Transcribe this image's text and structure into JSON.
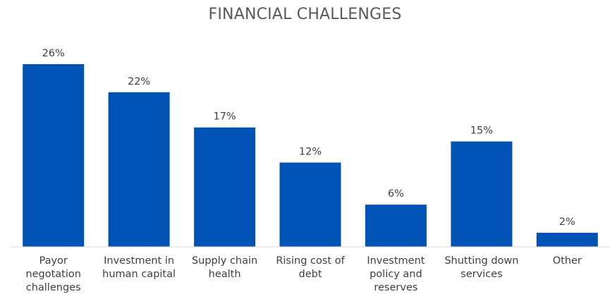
{
  "chart_data": {
    "type": "bar",
    "title": "FINANCIAL CHALLENGES",
    "categories": [
      "Payor negotation challenges",
      "Investment in human capital",
      "Supply chain health",
      "Rising cost of debt",
      "Investment policy and reserves",
      "Shutting down services",
      "Other"
    ],
    "category_lines": [
      [
        "Payor",
        "negotation",
        "challenges"
      ],
      [
        "Investment in",
        "human capital"
      ],
      [
        "Supply chain",
        "health"
      ],
      [
        "Rising cost of",
        "debt"
      ],
      [
        "Investment",
        "policy and",
        "reserves"
      ],
      [
        "Shutting down",
        "services"
      ],
      [
        "Other"
      ]
    ],
    "values": [
      26,
      22,
      17,
      12,
      6,
      15,
      2
    ],
    "data_labels": [
      "26%",
      "22%",
      "17%",
      "12%",
      "6%",
      "15%",
      "2%"
    ],
    "ylim": [
      0,
      30
    ],
    "grid": false,
    "legend": "none",
    "bar_color": "#0052B4",
    "axis_color": "#D9D9D9",
    "label_color": "#404040",
    "title_color": "#595959"
  }
}
